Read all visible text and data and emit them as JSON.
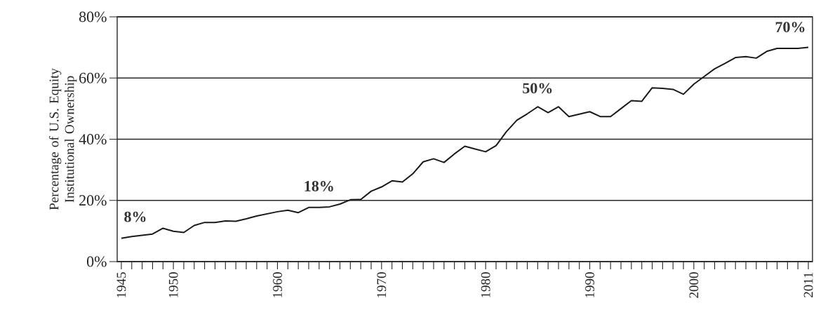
{
  "chart_data": {
    "type": "line",
    "ylabel": "Percentage of U.S. Equity Institutional Ownership",
    "x": [
      1945,
      1946,
      1947,
      1948,
      1949,
      1950,
      1951,
      1952,
      1953,
      1954,
      1955,
      1956,
      1957,
      1958,
      1959,
      1960,
      1961,
      1962,
      1963,
      1964,
      1965,
      1966,
      1967,
      1968,
      1969,
      1970,
      1971,
      1972,
      1973,
      1974,
      1975,
      1976,
      1977,
      1978,
      1979,
      1980,
      1981,
      1982,
      1983,
      1984,
      1985,
      1986,
      1987,
      1988,
      1989,
      1990,
      1991,
      1992,
      1993,
      1994,
      1995,
      1996,
      1997,
      1998,
      1999,
      2000,
      2001,
      2002,
      2003,
      2004,
      2005,
      2006,
      2007,
      2008,
      2009,
      2010,
      2011
    ],
    "series": [
      {
        "color": "#1a1a1a",
        "values": [
          7.6,
          8.2,
          8.6,
          9.0,
          10.9,
          9.9,
          9.5,
          11.8,
          12.8,
          12.8,
          13.3,
          13.2,
          14.0,
          14.9,
          15.6,
          16.3,
          16.8,
          16.0,
          17.7,
          17.7,
          17.9,
          18.8,
          20.2,
          20.3,
          23.0,
          24.4,
          26.4,
          26.0,
          28.7,
          32.6,
          33.6,
          32.4,
          35.2,
          37.7,
          36.8,
          35.9,
          37.9,
          42.5,
          46.2,
          48.3,
          50.6,
          48.7,
          50.6,
          47.4,
          48.2,
          49.0,
          47.4,
          47.4,
          50.0,
          52.6,
          52.4,
          56.8,
          56.6,
          56.3,
          54.7,
          58.0,
          60.5,
          63.0,
          64.8,
          66.7,
          67.0,
          66.5,
          68.7,
          69.7,
          69.7,
          69.7,
          70.0
        ]
      }
    ],
    "xlim": [
      1944.6,
      2011.4
    ],
    "ylim": [
      0,
      80
    ],
    "xticks": [
      1945,
      {
        "value": 1946,
        "label": null
      },
      {
        "value": 1947,
        "label": null
      },
      {
        "value": 1948,
        "label": null
      },
      {
        "value": 1949,
        "label": null
      },
      1950,
      {
        "value": 1951,
        "label": null
      },
      {
        "value": 1952,
        "label": null
      },
      {
        "value": 1953,
        "label": null
      },
      {
        "value": 1954,
        "label": null
      },
      {
        "value": 1955,
        "label": null
      },
      {
        "value": 1956,
        "label": null
      },
      {
        "value": 1957,
        "label": null
      },
      {
        "value": 1958,
        "label": null
      },
      {
        "value": 1959,
        "label": null
      },
      1960,
      {
        "value": 1961,
        "label": null
      },
      {
        "value": 1962,
        "label": null
      },
      {
        "value": 1963,
        "label": null
      },
      {
        "value": 1964,
        "label": null
      },
      {
        "value": 1965,
        "label": null
      },
      {
        "value": 1966,
        "label": null
      },
      {
        "value": 1967,
        "label": null
      },
      {
        "value": 1968,
        "label": null
      },
      {
        "value": 1969,
        "label": null
      },
      1970,
      {
        "value": 1971,
        "label": null
      },
      {
        "value": 1972,
        "label": null
      },
      {
        "value": 1973,
        "label": null
      },
      {
        "value": 1974,
        "label": null
      },
      {
        "value": 1975,
        "label": null
      },
      {
        "value": 1976,
        "label": null
      },
      {
        "value": 1977,
        "label": null
      },
      {
        "value": 1978,
        "label": null
      },
      {
        "value": 1979,
        "label": null
      },
      1980,
      {
        "value": 1981,
        "label": null
      },
      {
        "value": 1982,
        "label": null
      },
      {
        "value": 1983,
        "label": null
      },
      {
        "value": 1984,
        "label": null
      },
      {
        "value": 1985,
        "label": null
      },
      {
        "value": 1986,
        "label": null
      },
      {
        "value": 1987,
        "label": null
      },
      {
        "value": 1988,
        "label": null
      },
      {
        "value": 1989,
        "label": null
      },
      1990,
      {
        "value": 1991,
        "label": null
      },
      {
        "value": 1992,
        "label": null
      },
      {
        "value": 1993,
        "label": null
      },
      {
        "value": 1994,
        "label": null
      },
      {
        "value": 1995,
        "label": null
      },
      {
        "value": 1996,
        "label": null
      },
      {
        "value": 1997,
        "label": null
      },
      {
        "value": 1998,
        "label": null
      },
      {
        "value": 1999,
        "label": null
      },
      2000,
      {
        "value": 2001,
        "label": null
      },
      {
        "value": 2002,
        "label": null
      },
      {
        "value": 2003,
        "label": null
      },
      {
        "value": 2004,
        "label": null
      },
      {
        "value": 2005,
        "label": null
      },
      {
        "value": 2006,
        "label": null
      },
      {
        "value": 2007,
        "label": null
      },
      {
        "value": 2008,
        "label": null
      },
      {
        "value": 2009,
        "label": null
      },
      {
        "value": 2010,
        "label": null
      },
      2011
    ],
    "yticks": [
      {
        "value": 0,
        "label": "0%"
      },
      {
        "value": 20,
        "label": "20%"
      },
      {
        "value": 40,
        "label": "40%"
      },
      {
        "value": 60,
        "label": "60%"
      },
      {
        "value": 80,
        "label": "80%"
      }
    ],
    "grid": "y",
    "marker": "none",
    "line_style": "solid",
    "annotations": [
      {
        "text": "8%",
        "x": 1945,
        "y": 8
      },
      {
        "text": "18%",
        "x": 1964,
        "y": 18
      },
      {
        "text": "50%",
        "x": 1985,
        "y": 50
      },
      {
        "text": "70%",
        "x": 2011,
        "y": 70
      }
    ]
  }
}
